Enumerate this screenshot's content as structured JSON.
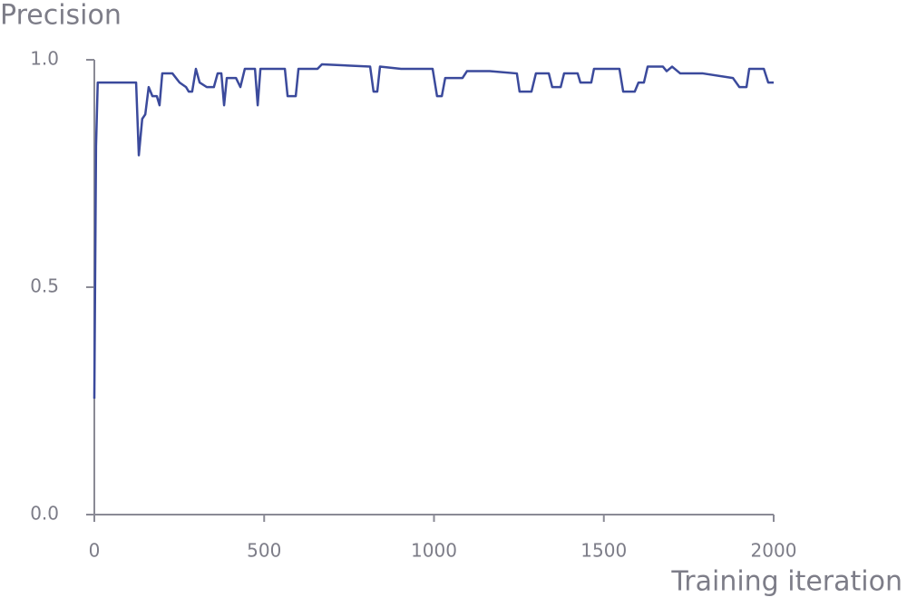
{
  "chart_data": {
    "type": "line",
    "y_label": "Precision",
    "x_label": "Training iteration",
    "xlim": [
      0,
      2000
    ],
    "xticks": [
      0,
      500,
      1000,
      1500,
      2000
    ],
    "ylim": [
      0,
      1
    ],
    "yticks": [
      {
        "value": 0,
        "label": "0.0"
      },
      0.5,
      {
        "value": 1,
        "label": "1.0"
      }
    ],
    "grid": false,
    "x": [
      0,
      5,
      10,
      123,
      131,
      141,
      150,
      160,
      171,
      184,
      192,
      200,
      230,
      251,
      270,
      278,
      288,
      299,
      310,
      331,
      352,
      363,
      374,
      382,
      390,
      417,
      430,
      443,
      473,
      481,
      489,
      561,
      569,
      593,
      601,
      657,
      670,
      812,
      822,
      833,
      841,
      903,
      913,
      996,
      1009,
      1023,
      1033,
      1084,
      1097,
      1164,
      1244,
      1252,
      1287,
      1300,
      1338,
      1348,
      1373,
      1383,
      1423,
      1431,
      1463,
      1471,
      1546,
      1557,
      1591,
      1602,
      1618,
      1629,
      1674,
      1685,
      1701,
      1725,
      1792,
      1880,
      1899,
      1920,
      1928,
      1971,
      1984,
      2000
    ],
    "series": [
      {
        "color": "#3b4a9c",
        "values": [
          0.255,
          0.81,
          0.95,
          0.95,
          0.79,
          0.87,
          0.88,
          0.94,
          0.92,
          0.92,
          0.9,
          0.97,
          0.97,
          0.95,
          0.94,
          0.93,
          0.93,
          0.98,
          0.95,
          0.94,
          0.94,
          0.97,
          0.97,
          0.9,
          0.96,
          0.96,
          0.94,
          0.98,
          0.98,
          0.9,
          0.98,
          0.98,
          0.92,
          0.92,
          0.98,
          0.98,
          0.99,
          0.985,
          0.93,
          0.93,
          0.985,
          0.98,
          0.98,
          0.98,
          0.92,
          0.92,
          0.96,
          0.96,
          0.975,
          0.975,
          0.97,
          0.93,
          0.93,
          0.97,
          0.97,
          0.94,
          0.94,
          0.97,
          0.97,
          0.95,
          0.95,
          0.98,
          0.98,
          0.93,
          0.93,
          0.95,
          0.95,
          0.985,
          0.985,
          0.975,
          0.985,
          0.97,
          0.97,
          0.96,
          0.94,
          0.94,
          0.98,
          0.98,
          0.95,
          0.95
        ]
      }
    ]
  }
}
